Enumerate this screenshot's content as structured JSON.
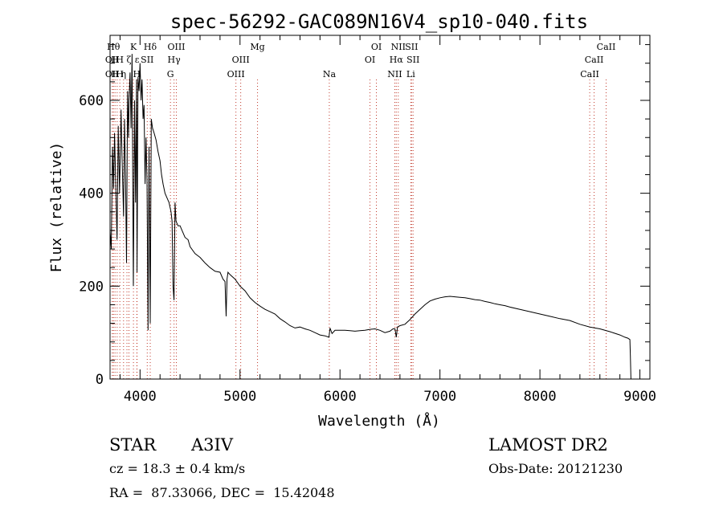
{
  "chart_data": {
    "type": "line",
    "title": "spec-56292-GAC089N16V4_sp10-040.fits",
    "xlabel": "Wavelength (Å)",
    "ylabel": "Flux (relative)",
    "xlim": [
      3700,
      9100
    ],
    "ylim": [
      0,
      740
    ],
    "xticks": [
      4000,
      5000,
      6000,
      7000,
      8000,
      9000
    ],
    "yticks": [
      0,
      200,
      400,
      600
    ],
    "grid": false,
    "series": [
      {
        "x": [
          3700,
          3712,
          3725,
          3735,
          3745,
          3755,
          3770,
          3782,
          3795,
          3810,
          3820,
          3835,
          3845,
          3855,
          3865,
          3875,
          3885,
          3890,
          3900,
          3910,
          3920,
          3933,
          3945,
          3955,
          3965,
          3970,
          3980,
          3990,
          4000,
          4010,
          4020,
          4030,
          4040,
          4050,
          4060,
          4070,
          4080,
          4090,
          4102,
          4112,
          4125,
          4140,
          4160,
          4180,
          4200,
          4215,
          4230,
          4250,
          4270,
          4290,
          4310,
          4320,
          4330,
          4340,
          4350,
          4360,
          4380,
          4400,
          4420,
          4450,
          4480,
          4500,
          4550,
          4600,
          4650,
          4700,
          4750,
          4800,
          4830,
          4850,
          4861,
          4870,
          4880,
          4900,
          4950,
          5000,
          5050,
          5100,
          5150,
          5200,
          5250,
          5300,
          5350,
          5400,
          5450,
          5500,
          5550,
          5600,
          5650,
          5700,
          5750,
          5800,
          5850,
          5890,
          5900,
          5920,
          5950,
          6000,
          6050,
          6100,
          6150,
          6200,
          6250,
          6300,
          6350,
          6400,
          6450,
          6500,
          6530,
          6550,
          6563,
          6575,
          6600,
          6650,
          6700,
          6750,
          6800,
          6850,
          6900,
          6950,
          7000,
          7050,
          7100,
          7150,
          7200,
          7250,
          7300,
          7350,
          7400,
          7450,
          7500,
          7550,
          7600,
          7650,
          7700,
          7800,
          7900,
          8000,
          8100,
          8200,
          8300,
          8400,
          8500,
          8600,
          8700,
          8800,
          8850,
          8880,
          8900,
          8905,
          8910
        ],
        "values": [
          320,
          280,
          500,
          410,
          530,
          440,
          300,
          545,
          400,
          580,
          480,
          350,
          560,
          430,
          250,
          620,
          520,
          600,
          660,
          540,
          700,
          200,
          600,
          380,
          645,
          230,
          650,
          620,
          680,
          600,
          645,
          560,
          590,
          420,
          520,
          430,
          105,
          500,
          120,
          560,
          540,
          530,
          515,
          490,
          470,
          440,
          420,
          400,
          390,
          380,
          360,
          340,
          200,
          170,
          380,
          340,
          330,
          330,
          320,
          305,
          300,
          285,
          270,
          262,
          250,
          240,
          232,
          230,
          215,
          210,
          135,
          215,
          230,
          225,
          215,
          200,
          190,
          175,
          165,
          157,
          150,
          145,
          140,
          130,
          123,
          115,
          110,
          112,
          108,
          105,
          100,
          95,
          93,
          90,
          110,
          98,
          105,
          105,
          105,
          104,
          103,
          104,
          105,
          107,
          108,
          105,
          100,
          103,
          108,
          108,
          90,
          112,
          115,
          118,
          128,
          140,
          150,
          160,
          168,
          172,
          175,
          177,
          178,
          177,
          176,
          175,
          173,
          171,
          170,
          167,
          165,
          162,
          160,
          158,
          155,
          150,
          145,
          140,
          135,
          130,
          126,
          118,
          112,
          108,
          102,
          95,
          90,
          88,
          85,
          50,
          0
        ]
      }
    ],
    "lines": [
      {
        "x": 3722,
        "labels": [
          {
            "text": "OII",
            "row": 2
          },
          {
            "text": "OII",
            "row": 3
          }
        ]
      },
      {
        "x": 3734,
        "labels": [
          {
            "text": "Hθ",
            "row": 1
          }
        ]
      },
      {
        "x": 3750,
        "labels": [
          {
            "text": "H",
            "row": 2
          },
          {
            "text": "H",
            "row": 3
          }
        ]
      },
      {
        "x": 3771,
        "labels": [
          {
            "text": "",
            "row": 0
          }
        ]
      },
      {
        "x": 3798,
        "labels": [
          {
            "text": "H",
            "row": 2
          },
          {
            "text": "H",
            "row": 3
          }
        ]
      },
      {
        "x": 3835,
        "labels": [
          {
            "text": "η",
            "row": 3
          }
        ]
      },
      {
        "x": 3869,
        "labels": [
          {
            "text": "",
            "row": 0
          }
        ]
      },
      {
        "x": 3889,
        "labels": [
          {
            "text": "ζ",
            "row": 2
          }
        ]
      },
      {
        "x": 3934,
        "labels": [
          {
            "text": "K",
            "row": 1
          }
        ]
      },
      {
        "x": 3968,
        "labels": [
          {
            "text": "H",
            "row": 3
          }
        ]
      },
      {
        "x": 3970,
        "labels": [
          {
            "text": "ε",
            "row": 2
          }
        ]
      },
      {
        "x": 4072,
        "labels": [
          {
            "text": "SII",
            "row": 2
          }
        ]
      },
      {
        "x": 4102,
        "labels": [
          {
            "text": "Hδ",
            "row": 1
          }
        ]
      },
      {
        "x": 4304,
        "labels": [
          {
            "text": "G",
            "row": 3
          }
        ]
      },
      {
        "x": 4340,
        "labels": [
          {
            "text": "Hγ",
            "row": 2
          }
        ]
      },
      {
        "x": 4363,
        "labels": [
          {
            "text": "OIII",
            "row": 1
          }
        ]
      },
      {
        "x": 4959,
        "labels": [
          {
            "text": "OIII",
            "row": 3
          }
        ]
      },
      {
        "x": 5007,
        "labels": [
          {
            "text": "OIII",
            "row": 2
          }
        ]
      },
      {
        "x": 5175,
        "labels": [
          {
            "text": "Mg",
            "row": 1
          }
        ]
      },
      {
        "x": 5893,
        "labels": [
          {
            "text": "Na",
            "row": 3
          }
        ]
      },
      {
        "x": 6300,
        "labels": [
          {
            "text": "OI",
            "row": 2
          }
        ]
      },
      {
        "x": 6364,
        "labels": [
          {
            "text": "OI",
            "row": 1
          }
        ]
      },
      {
        "x": 6548,
        "labels": [
          {
            "text": "NII",
            "row": 3
          }
        ]
      },
      {
        "x": 6563,
        "labels": [
          {
            "text": "Hα",
            "row": 2
          }
        ]
      },
      {
        "x": 6583,
        "labels": [
          {
            "text": "NII",
            "row": 1
          }
        ]
      },
      {
        "x": 6708,
        "labels": [
          {
            "text": "Li",
            "row": 3
          }
        ]
      },
      {
        "x": 6716,
        "labels": [
          {
            "text": "SII",
            "row": 1
          }
        ]
      },
      {
        "x": 6731,
        "labels": [
          {
            "text": "SII",
            "row": 2
          }
        ]
      },
      {
        "x": 8498,
        "labels": [
          {
            "text": "CaII",
            "row": 3
          }
        ]
      },
      {
        "x": 8542,
        "labels": [
          {
            "text": "CaII",
            "row": 2
          }
        ]
      },
      {
        "x": 8662,
        "labels": [
          {
            "text": "CaII",
            "row": 1
          }
        ]
      }
    ],
    "line_color": "#c0392b"
  },
  "info": {
    "object_type": "STAR",
    "subclass": "A3IV",
    "survey": "LAMOST DR2",
    "redshift": "cz = 18.3 ± 0.4 km/s",
    "obs_date": "Obs-Date: 20121230",
    "coords": "RA =  87.33066, DEC =  15.42048"
  }
}
